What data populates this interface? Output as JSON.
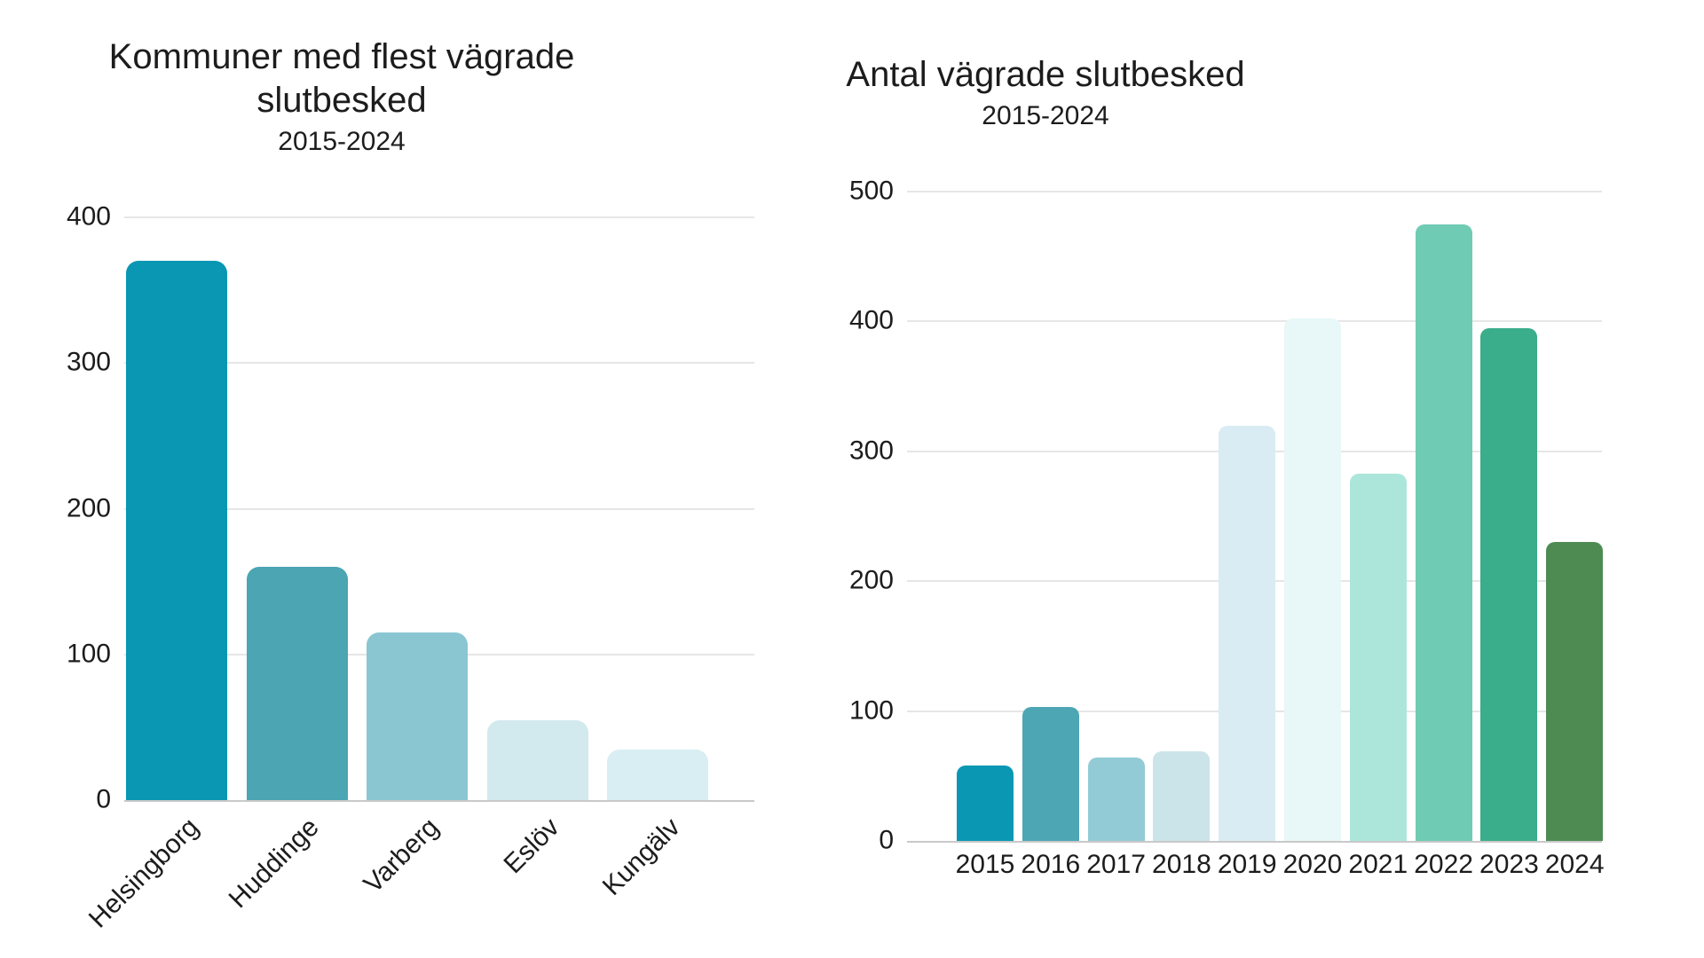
{
  "page": {
    "background": "#ffffff"
  },
  "theme": {
    "text_color": "#1c1c1c",
    "gridline_color": "#e6e6e6",
    "axis_line_color": "#c9c9c9",
    "background": "#ffffff"
  },
  "chart_data": [
    {
      "type": "bar",
      "title": "Kommuner med flest vägrade slutbesked",
      "subtitle": "2015-2024",
      "categories": [
        "Helsingborg",
        "Huddinge",
        "Varberg",
        "Eslöv",
        "Kungälv"
      ],
      "values": [
        370,
        160,
        115,
        55,
        35
      ],
      "bar_colors": [
        "#0997b3",
        "#4ba5b2",
        "#8ac6d2",
        "#d2e9ee",
        "#d8eef2"
      ],
      "ylim": [
        0,
        400
      ],
      "yticks": [
        0,
        100,
        200,
        300,
        400
      ],
      "xlabel": "",
      "ylabel": "",
      "grid": true,
      "legend": "none",
      "xtick_rotation": -45
    },
    {
      "type": "bar",
      "title": "Antal vägrade slutbesked",
      "subtitle": "2015-2024",
      "categories": [
        "2015",
        "2016",
        "2017",
        "2018",
        "2019",
        "2020",
        "2021",
        "2022",
        "2023",
        "2024"
      ],
      "values": [
        58,
        103,
        64,
        69,
        320,
        402,
        283,
        475,
        395,
        230
      ],
      "bar_colors": [
        "#0997b3",
        "#4da6b4",
        "#92cbd6",
        "#cbe4ea",
        "#d9ecf3",
        "#e8f7f7",
        "#ace6da",
        "#6fcbb4",
        "#3aad8a",
        "#4d8b52"
      ],
      "ylim": [
        0,
        500
      ],
      "yticks": [
        0,
        100,
        200,
        300,
        400,
        500
      ],
      "xlabel": "",
      "ylabel": "",
      "grid": true,
      "legend": "none",
      "xtick_rotation": 0
    }
  ]
}
